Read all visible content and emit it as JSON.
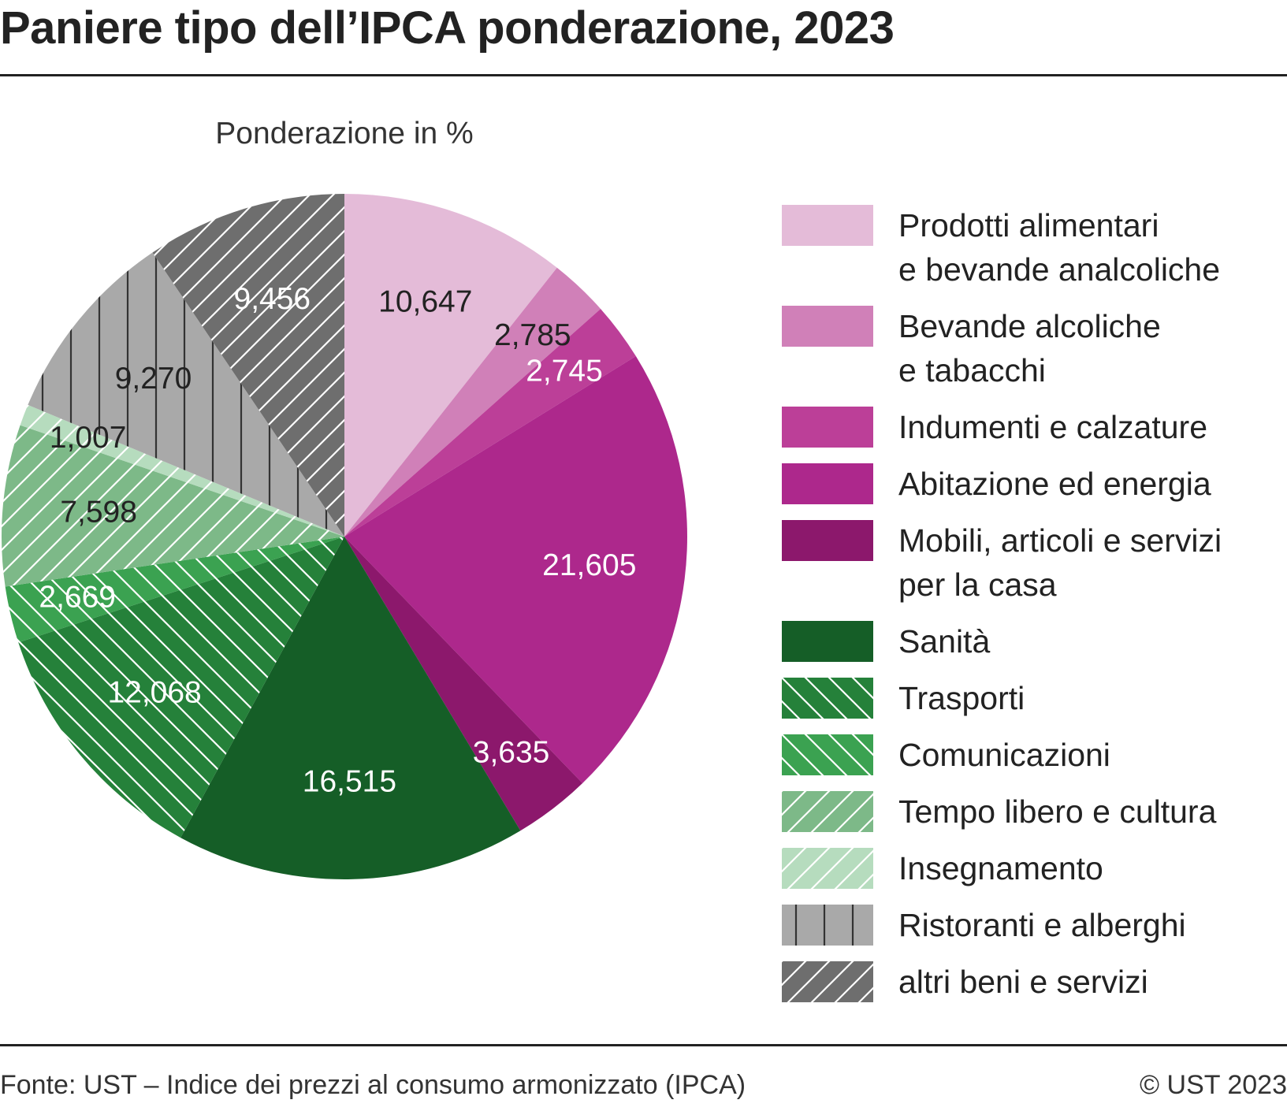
{
  "chart_data": {
    "type": "pie",
    "title": "Paniere tipo dell’IPCA ponderazione, 2023",
    "subtitle": "Ponderazione in %",
    "categories": [
      "Prodotti alimentari\ne bevande analcoliche",
      "Bevande alcoliche\ne tabacchi",
      "Indumenti e calzature",
      "Abitazione ed energia",
      "Mobili, articoli e servizi\nper la casa",
      "Sanità",
      "Trasporti",
      "Comunicazioni",
      "Tempo libero e cultura",
      "Insegnamento",
      "Ristoranti e alberghi",
      "altri beni e servizi"
    ],
    "values": [
      10.647,
      2.785,
      2.745,
      21.605,
      3.635,
      16.515,
      12.068,
      2.669,
      7.598,
      1.007,
      9.27,
      9.456
    ],
    "value_labels": [
      "10,647",
      "2,785",
      "2,745",
      "21,605",
      "3,635",
      "16,515",
      "12,068",
      "2,669",
      "7,598",
      "1,007",
      "9,270",
      "9,456"
    ],
    "colors": [
      "#e4bbd8",
      "#d080b8",
      "#bc3f98",
      "#ad288c",
      "#8c186c",
      "#155e27",
      "#25813a",
      "#3ba251",
      "#7db988",
      "#b6dcbe",
      "#a9a9a9",
      "#6e6e6e"
    ],
    "hatches": [
      "none",
      "none",
      "none",
      "none",
      "none",
      "none",
      "backslash",
      "backslash",
      "slash",
      "slash",
      "vertical",
      "slash"
    ],
    "source": "Fonte: UST – Indice dei prezzi al consumo armonizzato (IPCA)",
    "copyright": "© UST 2023"
  }
}
